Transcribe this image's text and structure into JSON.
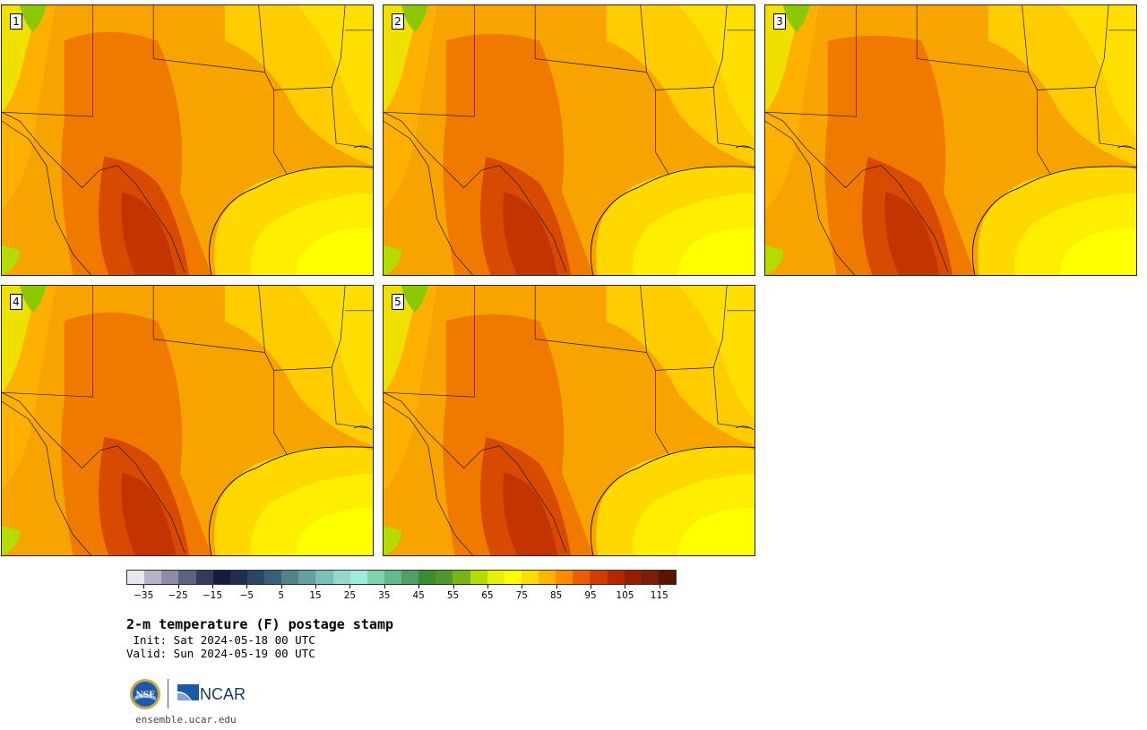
{
  "panels": [
    {
      "label": "1"
    },
    {
      "label": "2"
    },
    {
      "label": "3"
    },
    {
      "label": "4"
    },
    {
      "label": "5"
    }
  ],
  "colorbar": {
    "ticks": [
      "−35",
      "−25",
      "−15",
      "−5",
      "5",
      "15",
      "25",
      "35",
      "45",
      "55",
      "65",
      "75",
      "85",
      "95",
      "105",
      "115"
    ],
    "tick_values": [
      -35,
      -25,
      -15,
      -5,
      5,
      15,
      25,
      35,
      45,
      55,
      65,
      75,
      85,
      95,
      105,
      115
    ],
    "range": [
      -40,
      120
    ],
    "colors": [
      "#e6e6ec",
      "#b4b4c8",
      "#8c8ca4",
      "#5a6482",
      "#323c5a",
      "#141e3c",
      "#1e2d50",
      "#2d4664",
      "#3c5f78",
      "#508286",
      "#64a0a0",
      "#7dbeb9",
      "#96d6cc",
      "#a0ecdc",
      "#82d2aa",
      "#64b98c",
      "#50a064",
      "#3c8c32",
      "#509628",
      "#78b414",
      "#b4dc00",
      "#e6f000",
      "#ffff00",
      "#ffdc00",
      "#ffb400",
      "#ff8c00",
      "#f05a00",
      "#d23c00",
      "#b42800",
      "#961e00",
      "#781e0a",
      "#5a1400"
    ]
  },
  "title": "2-m temperature (F) postage stamp",
  "init_line": " Init: Sat 2024-05-18 00 UTC",
  "valid_line": "Valid: Sun 2024-05-19 00 UTC",
  "logos": {
    "nsf": "NSF",
    "ncar": "NCAR"
  },
  "site": "ensemble.ucar.edu"
}
